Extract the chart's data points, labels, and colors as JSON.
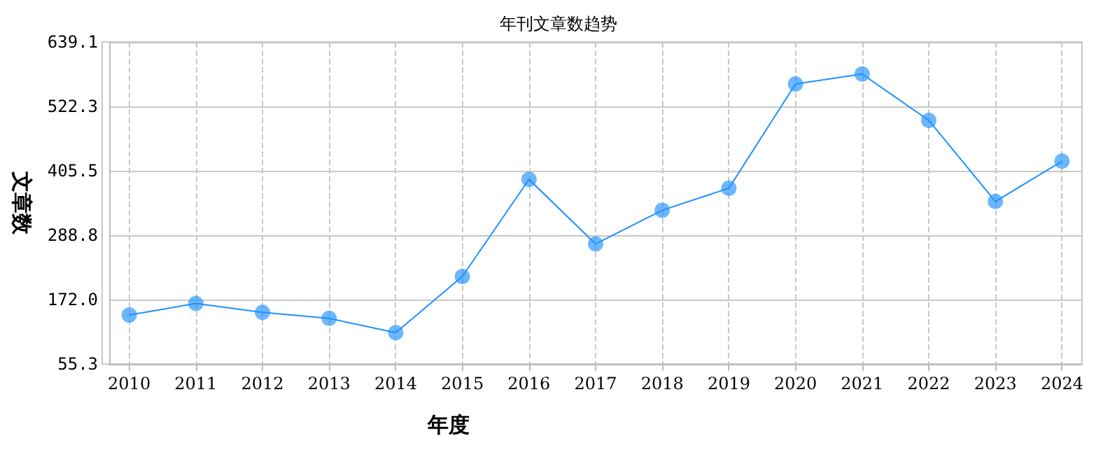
{
  "chart_data": {
    "type": "line",
    "title": "年刊文章数趋势",
    "xlabel": "年度",
    "ylabel": "文章数",
    "x": [
      2010,
      2011,
      2012,
      2013,
      2014,
      2015,
      2016,
      2017,
      2018,
      2019,
      2020,
      2021,
      2022,
      2023,
      2024
    ],
    "series": [
      {
        "color": "#1e90ff",
        "values": [
          144,
          165,
          149,
          138,
          112,
          214,
          390,
          273,
          334,
          374,
          563,
          581,
          497,
          350,
          423
        ]
      }
    ],
    "xlim": [
      2009.7,
      2024.3
    ],
    "xticks": [
      2010,
      2011,
      2012,
      2013,
      2014,
      2015,
      2016,
      2017,
      2018,
      2019,
      2020,
      2021,
      2022,
      2023,
      2024
    ],
    "ylim": [
      55.3,
      639.1
    ],
    "yticks": [
      {
        "value": 55.3,
        "label": "55.3"
      },
      {
        "value": 172,
        "label": "172.0"
      },
      {
        "value": 288.8,
        "label": "288.8"
      },
      {
        "value": 405.5,
        "label": "405.5"
      },
      {
        "value": 522.3,
        "label": "522.3"
      },
      {
        "value": 639.1,
        "label": "639.1"
      }
    ],
    "grid": true,
    "marker": "circle",
    "line_style": "solid"
  }
}
